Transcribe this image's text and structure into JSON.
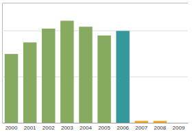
{
  "chart_data": {
    "type": "bar",
    "categories": [
      "2000",
      "2001",
      "2002",
      "2003",
      "2004",
      "2005",
      "2006",
      "2007",
      "2008",
      "2009"
    ],
    "values": [
      149,
      174,
      204,
      221,
      208,
      189,
      199,
      4,
      4,
      0
    ],
    "colors": [
      "#87aa61",
      "#87aa61",
      "#87aa61",
      "#87aa61",
      "#87aa61",
      "#87aa61",
      "#35999b",
      "#f2a31d",
      "#f2a31d",
      "#f2a31d"
    ],
    "ylim": [
      0,
      260
    ],
    "yticks": [
      0,
      100,
      200
    ],
    "grid": true,
    "tick_labels": "x"
  }
}
